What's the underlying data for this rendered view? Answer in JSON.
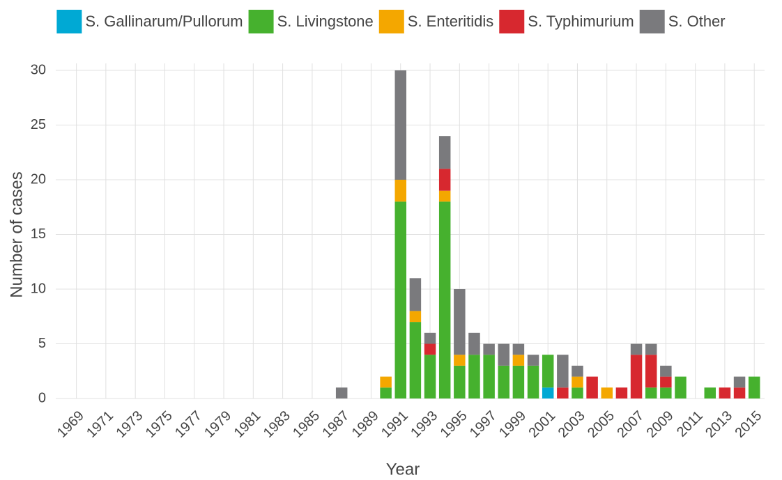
{
  "chart_data": {
    "type": "stacked_bar",
    "x_label": "Year",
    "y_label": "Number of cases",
    "x": [
      1968,
      1969,
      1970,
      1971,
      1972,
      1973,
      1974,
      1975,
      1976,
      1977,
      1978,
      1979,
      1980,
      1981,
      1982,
      1983,
      1984,
      1985,
      1986,
      1987,
      1988,
      1989,
      1990,
      1991,
      1992,
      1993,
      1994,
      1995,
      1996,
      1997,
      1998,
      1999,
      2000,
      2001,
      2002,
      2003,
      2004,
      2005,
      2006,
      2007,
      2008,
      2009,
      2010,
      2011,
      2012,
      2013,
      2014,
      2015
    ],
    "series": [
      {
        "name": "S. Gallinarum/Pullorum",
        "color": "#00a9d4",
        "values": [
          0,
          0,
          0,
          0,
          0,
          0,
          0,
          0,
          0,
          0,
          0,
          0,
          0,
          0,
          0,
          0,
          0,
          0,
          0,
          0,
          0,
          0,
          0,
          0,
          0,
          0,
          0,
          0,
          0,
          0,
          0,
          0,
          0,
          1,
          0,
          0,
          0,
          0,
          0,
          0,
          0,
          0,
          0,
          0,
          0,
          0,
          0,
          0
        ]
      },
      {
        "name": "S. Livingstone",
        "color": "#46b12e",
        "values": [
          0,
          0,
          0,
          0,
          0,
          0,
          0,
          0,
          0,
          0,
          0,
          0,
          0,
          0,
          0,
          0,
          0,
          0,
          0,
          0,
          0,
          0,
          1,
          18,
          7,
          4,
          18,
          3,
          4,
          4,
          3,
          3,
          3,
          3,
          0,
          1,
          0,
          0,
          0,
          0,
          1,
          1,
          2,
          0,
          1,
          0,
          0,
          2
        ]
      },
      {
        "name": "S. Enteritidis",
        "color": "#f4a700",
        "values": [
          0,
          0,
          0,
          0,
          0,
          0,
          0,
          0,
          0,
          0,
          0,
          0,
          0,
          0,
          0,
          0,
          0,
          0,
          0,
          0,
          0,
          0,
          1,
          2,
          1,
          0,
          1,
          1,
          0,
          0,
          0,
          1,
          0,
          0,
          0,
          1,
          0,
          1,
          0,
          0,
          0,
          0,
          0,
          0,
          0,
          0,
          0,
          0
        ]
      },
      {
        "name": "S. Typhimurium",
        "color": "#d7282f",
        "values": [
          0,
          0,
          0,
          0,
          0,
          0,
          0,
          0,
          0,
          0,
          0,
          0,
          0,
          0,
          0,
          0,
          0,
          0,
          0,
          0,
          0,
          0,
          0,
          0,
          0,
          1,
          2,
          0,
          0,
          0,
          0,
          0,
          0,
          0,
          1,
          0,
          2,
          0,
          1,
          4,
          3,
          1,
          0,
          0,
          0,
          1,
          1,
          0
        ]
      },
      {
        "name": "S. Other",
        "color": "#7a7a7d",
        "values": [
          0,
          0,
          0,
          0,
          0,
          0,
          0,
          0,
          0,
          0,
          0,
          0,
          0,
          0,
          0,
          0,
          0,
          0,
          0,
          1,
          0,
          0,
          0,
          10,
          3,
          1,
          3,
          6,
          2,
          1,
          2,
          1,
          1,
          0,
          3,
          1,
          0,
          0,
          0,
          1,
          1,
          1,
          0,
          0,
          0,
          0,
          1,
          0
        ]
      }
    ],
    "xlim": [
      1967.6,
      2015.7
    ],
    "xticks": [
      1969,
      1971,
      1973,
      1975,
      1977,
      1979,
      1981,
      1983,
      1985,
      1987,
      1989,
      1991,
      1993,
      1995,
      1997,
      1999,
      2001,
      2003,
      2005,
      2007,
      2009,
      2011,
      2013,
      2015
    ],
    "ylim": [
      0,
      30
    ],
    "yticks": [
      0,
      5,
      10,
      15,
      20,
      25,
      30
    ],
    "grid": true,
    "legend": "top"
  }
}
